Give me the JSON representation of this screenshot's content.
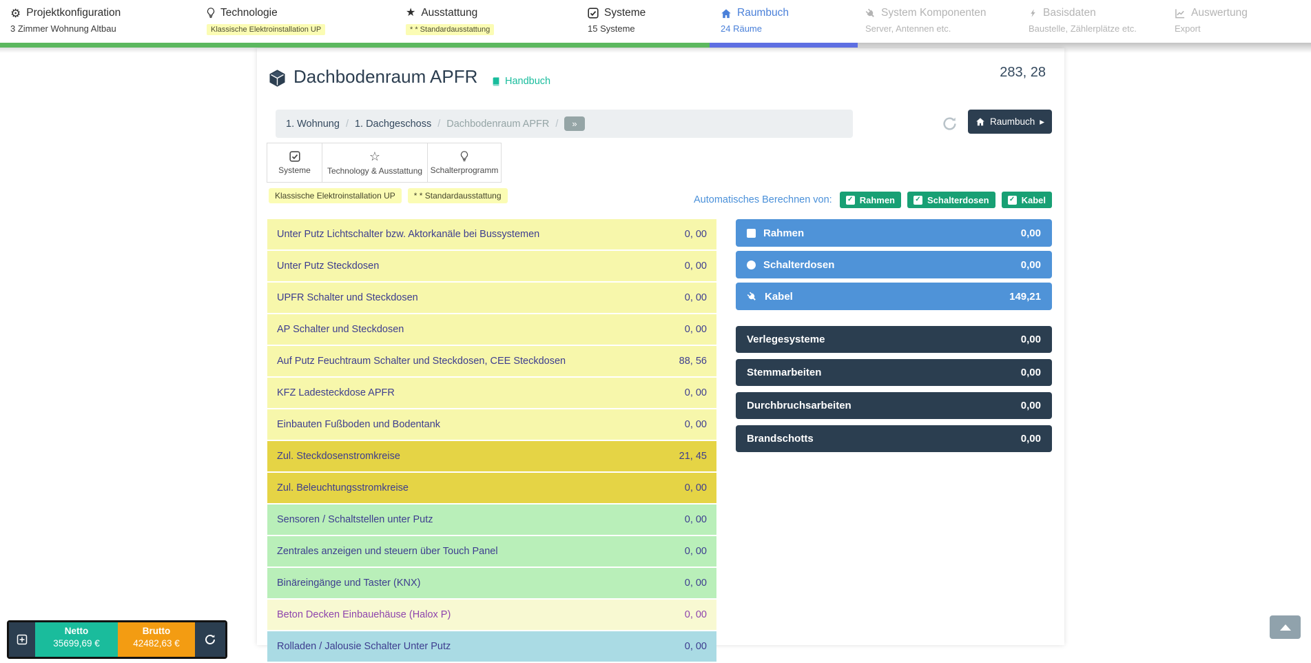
{
  "colors": {
    "accent_blue": "#4a80d9",
    "progress_green": "#5cb85f",
    "progress_blue": "#5e6fe2",
    "teal": "#18bc9c",
    "navy": "#2c3e50",
    "panel_blue": "#4f93d8",
    "check_badge_green": "#18a074",
    "orange": "#f39c12"
  },
  "nav": {
    "items": [
      {
        "title": "Projektkonfiguration",
        "subtitle": "3 Zimmer Wohnung Altbau",
        "icon": "gears-icon",
        "state": "normal",
        "subtitle_class": "plain-sub"
      },
      {
        "title": "Technologie",
        "subtitle": "Klassische Elektroinstallation UP",
        "icon": "lightbulb-icon",
        "state": "normal",
        "subtitle_class": "badge-sub"
      },
      {
        "title": "Ausstattung",
        "subtitle": "* * Standardausstattung",
        "icon": "star-icon",
        "state": "normal",
        "subtitle_class": "badge-sub"
      },
      {
        "title": "Systeme",
        "subtitle": "15 Systeme",
        "icon": "check-square-icon",
        "state": "normal",
        "subtitle_class": "plain-sub"
      },
      {
        "title": "Raumbuch",
        "subtitle": "24 Räume",
        "icon": "home-icon",
        "state": "active",
        "subtitle_class": "plain-sub"
      },
      {
        "title": "System Komponenten",
        "subtitle": "Server, Antennen etc.",
        "icon": "plug-icon",
        "state": "disabled",
        "subtitle_class": "plain-sub"
      },
      {
        "title": "Basisdaten",
        "subtitle": "Baustelle, Zählerplätze etc.",
        "icon": "bolt-icon",
        "state": "disabled",
        "subtitle_class": "plain-sub"
      },
      {
        "title": "Auswertung",
        "subtitle": "Export",
        "icon": "chart-icon",
        "state": "disabled",
        "subtitle_class": "plain-sub"
      }
    ]
  },
  "header": {
    "room_title": "Dachbodenraum APFR",
    "handbuch_label": "Handbuch",
    "coordinates": "283, 28"
  },
  "breadcrumb": {
    "items": [
      "1. Wohnung",
      "1. Dachgeschoss",
      "Dachbodenraum APFR"
    ],
    "separator": "/",
    "more_label": "»"
  },
  "toolbar": {
    "raumbuch_button_label": "Raumbuch"
  },
  "tabs": [
    {
      "label": "Systeme",
      "icon": "check-square-icon"
    },
    {
      "label": "Technology & Ausstattung",
      "icon": "star-outline-icon"
    },
    {
      "label": "Schalterprogramm",
      "icon": "lightbulb-icon"
    }
  ],
  "selection_badges": [
    "Klassische Elektroinstallation UP",
    "* * Standardausstattung"
  ],
  "auto_calc": {
    "label": "Automatisches Berechnen von:",
    "options": [
      {
        "label": "Rahmen",
        "checked": true
      },
      {
        "label": "Schalterdosen",
        "checked": true
      },
      {
        "label": "Kabel",
        "checked": true
      }
    ]
  },
  "systems": {
    "rows": [
      {
        "label": "Unter Putz Lichtschalter bzw. Aktorkanäle bei Bussystemen",
        "value": "0, 00",
        "tone": "yellow"
      },
      {
        "label": "Unter Putz Steckdosen",
        "value": "0, 00",
        "tone": "yellow"
      },
      {
        "label": "UPFR Schalter und Steckdosen",
        "value": "0, 00",
        "tone": "yellow"
      },
      {
        "label": "AP Schalter und Steckdosen",
        "value": "0, 00",
        "tone": "yellow"
      },
      {
        "label": "Auf Putz Feuchtraum Schalter und Steckdosen, CEE Steckdosen",
        "value": "88, 56",
        "tone": "yellow"
      },
      {
        "label": "KFZ Ladesteckdose APFR",
        "value": "0, 00",
        "tone": "yellow"
      },
      {
        "label": "Einbauten Fußboden und Bodentank",
        "value": "0, 00",
        "tone": "yellow"
      },
      {
        "label": "Zul. Steckdosenstromkreise",
        "value": "21, 45",
        "tone": "dark-yellow"
      },
      {
        "label": "Zul. Beleuchtungsstromkreise",
        "value": "0, 00",
        "tone": "dark-yellow"
      },
      {
        "label": "Sensoren / Schaltstellen unter Putz",
        "value": "0, 00",
        "tone": "green"
      },
      {
        "label": "Zentrales anzeigen und steuern über Touch Panel",
        "value": "0, 00",
        "tone": "green"
      },
      {
        "label": "Binäreingänge und Taster (KNX)",
        "value": "0, 00",
        "tone": "green"
      },
      {
        "label": "Beton Decken Einbauehäuse (Halox P)",
        "value": "0, 00",
        "tone": "pale-yellow purple-text"
      },
      {
        "label": "Rolladen / Jalousie Schalter Unter Putz",
        "value": "0, 00",
        "tone": "cyan"
      }
    ]
  },
  "totals": {
    "auto": [
      {
        "label": "Rahmen",
        "value": "0,00",
        "icon": "square-icon"
      },
      {
        "label": "Schalterdosen",
        "value": "0,00",
        "icon": "circle-icon"
      },
      {
        "label": "Kabel",
        "value": "149,21",
        "icon": "plug-icon"
      }
    ],
    "manual": [
      {
        "label": "Verlegesysteme",
        "value": "0,00"
      },
      {
        "label": "Stemmarbeiten",
        "value": "0,00"
      },
      {
        "label": "Durchbruchsarbeiten",
        "value": "0,00"
      },
      {
        "label": "Brandschotts",
        "value": "0,00"
      }
    ]
  },
  "price_bar": {
    "netto_label": "Netto",
    "netto_value": "35699,69 €",
    "brutto_label": "Brutto",
    "brutto_value": "42482,63 €"
  }
}
